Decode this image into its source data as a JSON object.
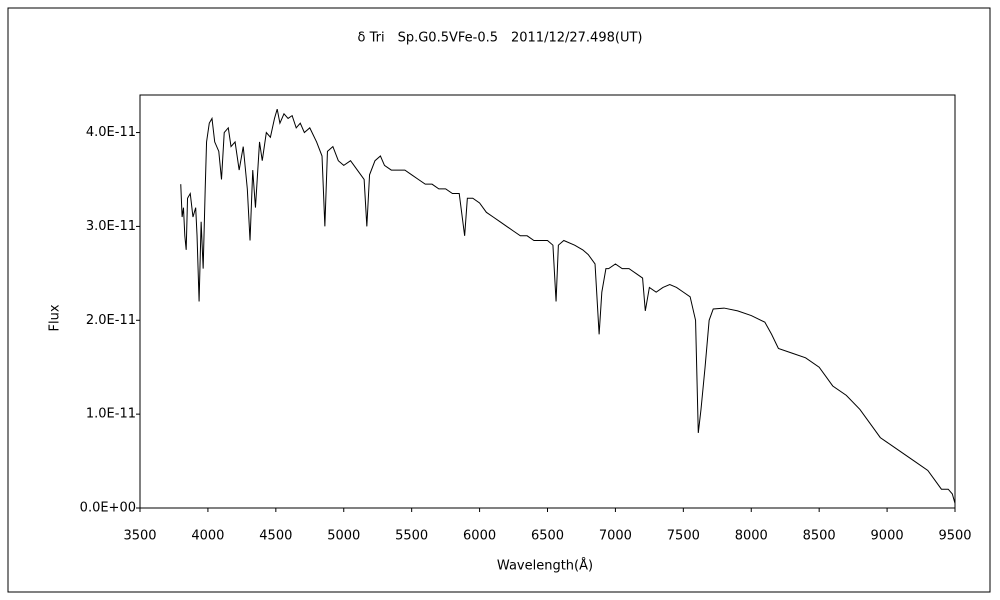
{
  "chart_data": {
    "type": "line",
    "title": "δ Tri　Sp.G0.5VFe-0.5　2011/12/27.498(UT)",
    "x_label": "Wavelength(Å)",
    "y_label": "Flux",
    "xlim": [
      3500,
      9500
    ],
    "xticks": [
      3500,
      4000,
      4500,
      5000,
      5500,
      6000,
      6500,
      7000,
      7500,
      8000,
      8500,
      9000,
      9500
    ],
    "ylim": [
      0,
      4.4e-11
    ],
    "yticks": [
      {
        "value": 0,
        "label": "0.0E+00"
      },
      {
        "value": 1e-11,
        "label": "1.0E-11"
      },
      {
        "value": 2e-11,
        "label": "2.0E-11"
      },
      {
        "value": 3e-11,
        "label": "3.0E-11"
      },
      {
        "value": 4e-11,
        "label": "4.0E-11"
      }
    ],
    "grid": false,
    "series": [
      {
        "color": "#000000",
        "x": [
          3800,
          3810,
          3820,
          3830,
          3840,
          3850,
          3870,
          3890,
          3910,
          3920,
          3935,
          3950,
          3965,
          3980,
          3990,
          4010,
          4030,
          4050,
          4080,
          4100,
          4120,
          4150,
          4170,
          4200,
          4230,
          4260,
          4290,
          4310,
          4330,
          4350,
          4380,
          4400,
          4430,
          4460,
          4490,
          4510,
          4530,
          4560,
          4590,
          4620,
          4650,
          4680,
          4710,
          4750,
          4800,
          4840,
          4861,
          4880,
          4920,
          4960,
          5000,
          5050,
          5100,
          5150,
          5170,
          5190,
          5230,
          5270,
          5300,
          5350,
          5400,
          5450,
          5500,
          5550,
          5600,
          5650,
          5700,
          5750,
          5800,
          5850,
          5890,
          5910,
          5950,
          6000,
          6050,
          6100,
          6150,
          6200,
          6250,
          6300,
          6350,
          6400,
          6450,
          6500,
          6540,
          6563,
          6580,
          6620,
          6700,
          6760,
          6800,
          6850,
          6880,
          6900,
          6930,
          6950,
          7000,
          7050,
          7100,
          7150,
          7200,
          7220,
          7250,
          7300,
          7350,
          7400,
          7450,
          7500,
          7550,
          7590,
          7610,
          7630,
          7660,
          7690,
          7720,
          7800,
          7900,
          8000,
          8100,
          8150,
          8200,
          8300,
          8400,
          8500,
          8550,
          8600,
          8700,
          8800,
          8900,
          8950,
          9000,
          9100,
          9200,
          9300,
          9350,
          9400,
          9450,
          9480,
          9500
        ],
        "values": [
          3.45e-11,
          3.1e-11,
          3.2e-11,
          2.9e-11,
          2.75e-11,
          3.3e-11,
          3.35e-11,
          3.1e-11,
          3.2e-11,
          2.9e-11,
          2.2e-11,
          3.05e-11,
          2.55e-11,
          3.4e-11,
          3.9e-11,
          4.1e-11,
          4.15e-11,
          3.9e-11,
          3.8e-11,
          3.5e-11,
          4e-11,
          4.05e-11,
          3.85e-11,
          3.9e-11,
          3.6e-11,
          3.85e-11,
          3.4e-11,
          2.85e-11,
          3.6e-11,
          3.2e-11,
          3.9e-11,
          3.7e-11,
          4e-11,
          3.95e-11,
          4.15e-11,
          4.25e-11,
          4.1e-11,
          4.2e-11,
          4.15e-11,
          4.18e-11,
          4.05e-11,
          4.1e-11,
          4e-11,
          4.05e-11,
          3.9e-11,
          3.75e-11,
          3e-11,
          3.8e-11,
          3.85e-11,
          3.7e-11,
          3.65e-11,
          3.7e-11,
          3.6e-11,
          3.5e-11,
          3e-11,
          3.55e-11,
          3.7e-11,
          3.75e-11,
          3.65e-11,
          3.6e-11,
          3.6e-11,
          3.6e-11,
          3.55e-11,
          3.5e-11,
          3.45e-11,
          3.45e-11,
          3.4e-11,
          3.4e-11,
          3.35e-11,
          3.35e-11,
          2.9e-11,
          3.3e-11,
          3.3e-11,
          3.25e-11,
          3.15e-11,
          3.1e-11,
          3.05e-11,
          3e-11,
          2.95e-11,
          2.9e-11,
          2.9e-11,
          2.85e-11,
          2.85e-11,
          2.85e-11,
          2.8e-11,
          2.2e-11,
          2.8e-11,
          2.85e-11,
          2.8e-11,
          2.75e-11,
          2.7e-11,
          2.6e-11,
          1.85e-11,
          2.3e-11,
          2.55e-11,
          2.55e-11,
          2.6e-11,
          2.55e-11,
          2.55e-11,
          2.5e-11,
          2.45e-11,
          2.1e-11,
          2.35e-11,
          2.3e-11,
          2.35e-11,
          2.38e-11,
          2.35e-11,
          2.3e-11,
          2.25e-11,
          2e-11,
          8e-12,
          1.05e-11,
          1.5e-11,
          2e-11,
          2.12e-11,
          2.13e-11,
          2.1e-11,
          2.05e-11,
          1.98e-11,
          1.85e-11,
          1.7e-11,
          1.65e-11,
          1.6e-11,
          1.5e-11,
          1.4e-11,
          1.3e-11,
          1.2e-11,
          1.05e-11,
          8.5e-12,
          7.5e-12,
          7e-12,
          6e-12,
          5e-12,
          4e-12,
          3e-12,
          2e-12,
          2e-12,
          1.5e-12,
          5e-13
        ]
      }
    ]
  }
}
